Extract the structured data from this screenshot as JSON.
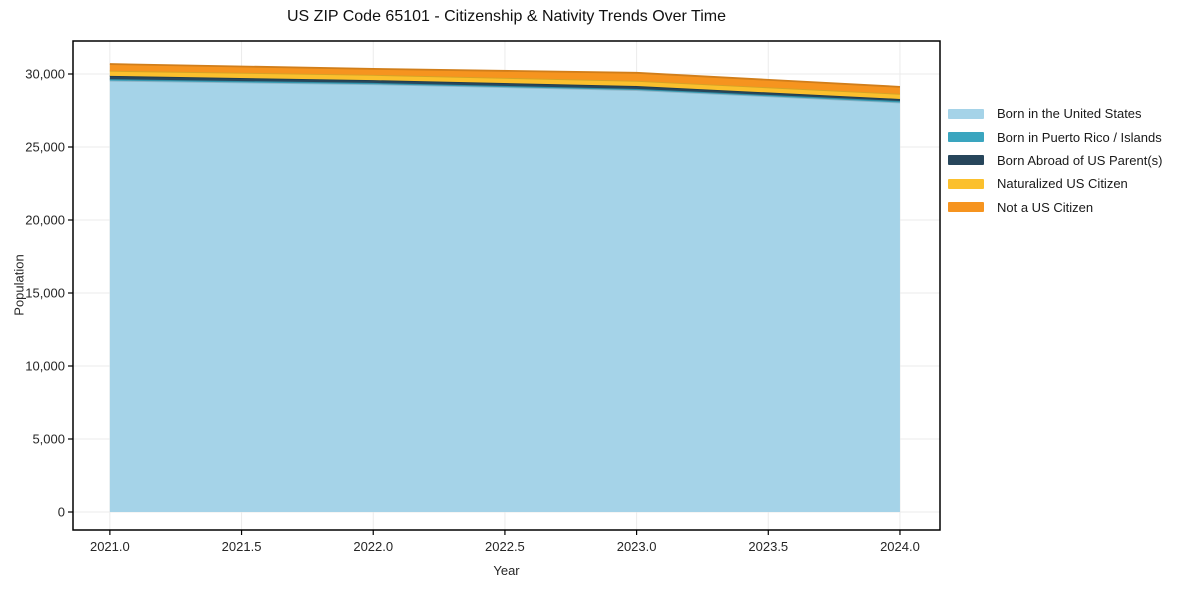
{
  "page": {
    "background": "#ffffff"
  },
  "chart_data": {
    "type": "area",
    "stacked": true,
    "title": "US ZIP Code 65101 - Citizenship & Nativity Trends Over Time",
    "xlabel": "Year",
    "ylabel": "Population",
    "grid": true,
    "legend_position": "right-outside",
    "x": [
      2021,
      2022,
      2023,
      2024
    ],
    "series": [
      {
        "name": "Born in the United States",
        "color": "#A5D3E8",
        "values": [
          29550,
          29300,
          28900,
          28050
        ]
      },
      {
        "name": "Born in Puerto Rico / Islands",
        "color": "#3AA5BF",
        "values": [
          100,
          90,
          80,
          100
        ]
      },
      {
        "name": "Born Abroad of US Parent(s)",
        "color": "#27465B",
        "values": [
          220,
          190,
          200,
          140
        ]
      },
      {
        "name": "Naturalized US Citizen",
        "color": "#FBC02D",
        "values": [
          350,
          360,
          350,
          350
        ]
      },
      {
        "name": "Not a US Citizen",
        "color": "#F6941F",
        "values": [
          460,
          410,
          550,
          480
        ]
      }
    ],
    "xlim": [
      2020.86,
      2024.152
    ],
    "ylim": [
      -1233,
      32260
    ],
    "xticks": [
      {
        "v": 2021.0,
        "label": "2021.0"
      },
      {
        "v": 2021.5,
        "label": "2021.5"
      },
      {
        "v": 2022.0,
        "label": "2022.0"
      },
      {
        "v": 2022.5,
        "label": "2022.5"
      },
      {
        "v": 2023.0,
        "label": "2023.0"
      },
      {
        "v": 2023.5,
        "label": "2023.5"
      },
      {
        "v": 2024.0,
        "label": "2024.0"
      }
    ],
    "yticks": [
      {
        "v": 0,
        "label": "0"
      },
      {
        "v": 5000,
        "label": "5,000"
      },
      {
        "v": 10000,
        "label": "10,000"
      },
      {
        "v": 15000,
        "label": "15,000"
      },
      {
        "v": 20000,
        "label": "20,000"
      },
      {
        "v": 25000,
        "label": "25,000"
      },
      {
        "v": 30000,
        "label": "30,000"
      }
    ]
  }
}
